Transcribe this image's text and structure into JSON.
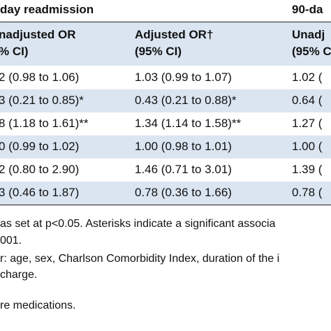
{
  "header": {
    "groups": [
      "day readmission",
      "90-da"
    ]
  },
  "table": {
    "columns": [
      [
        "nadjusted OR",
        "% CI)"
      ],
      [
        "Adjusted OR†",
        "(95% CI)"
      ],
      [
        "Unadj",
        "(95% C"
      ]
    ],
    "rows": [
      [
        "2 (0.98 to 1.06)",
        "1.03 (0.99 to 1.07)",
        "1.02 ("
      ],
      [
        "3 (0.21 to 0.85)*",
        "0.43 (0.21 to 0.88)*",
        "0.64 ("
      ],
      [
        "8 (1.18 to 1.61)**",
        "1.34 (1.14 to 1.58)**",
        "1.27 ("
      ],
      [
        "0 (0.99 to 1.02)",
        "1.00 (0.98 to 1.01)",
        "1.00 ("
      ],
      [
        "2 (0.80 to 2.90)",
        "1.46 (0.71 to 3.01)",
        "1.39 ("
      ],
      [
        "3 (0.46 to 1.87)",
        "0.78 (0.36 to 1.66)",
        "0.78 ("
      ]
    ]
  },
  "footnotes": [
    "as set at p<0.05. Asterisks indicate a significant associa",
    "001.",
    "r: age, sex, Charlson Comorbidity Index, duration of the i",
    "charge.",
    "re medications."
  ]
}
